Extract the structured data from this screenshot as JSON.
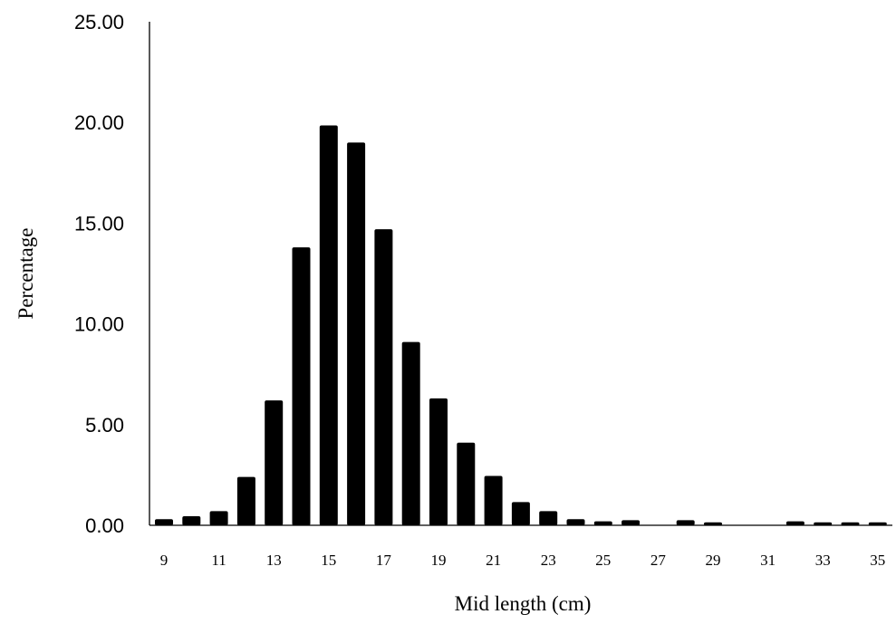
{
  "chart_data": {
    "type": "bar",
    "title": "",
    "xlabel": "Mid length (cm)",
    "ylabel": "Percentage",
    "ylim": [
      0,
      25
    ],
    "yticks": [
      "0.00",
      "5.00",
      "10.00",
      "15.00",
      "20.00",
      "25.00"
    ],
    "x": [
      9,
      10,
      11,
      12,
      13,
      14,
      15,
      16,
      17,
      18,
      19,
      20,
      21,
      22,
      23,
      24,
      25,
      26,
      27,
      28,
      29,
      30,
      31,
      32,
      33,
      34,
      35
    ],
    "values": [
      0.3,
      0.45,
      0.7,
      2.4,
      6.2,
      13.8,
      19.85,
      19.0,
      14.7,
      9.1,
      6.3,
      4.1,
      2.45,
      1.15,
      0.7,
      0.3,
      0.2,
      0.25,
      0.0,
      0.25,
      0.15,
      0.0,
      0.0,
      0.2,
      0.15,
      0.15,
      0.15
    ],
    "xtick_labels": [
      "9",
      "11",
      "13",
      "15",
      "17",
      "19",
      "21",
      "23",
      "25",
      "27",
      "29",
      "31",
      "33",
      "35"
    ],
    "grid": false,
    "legend": "none",
    "bar_color": "#000000"
  }
}
